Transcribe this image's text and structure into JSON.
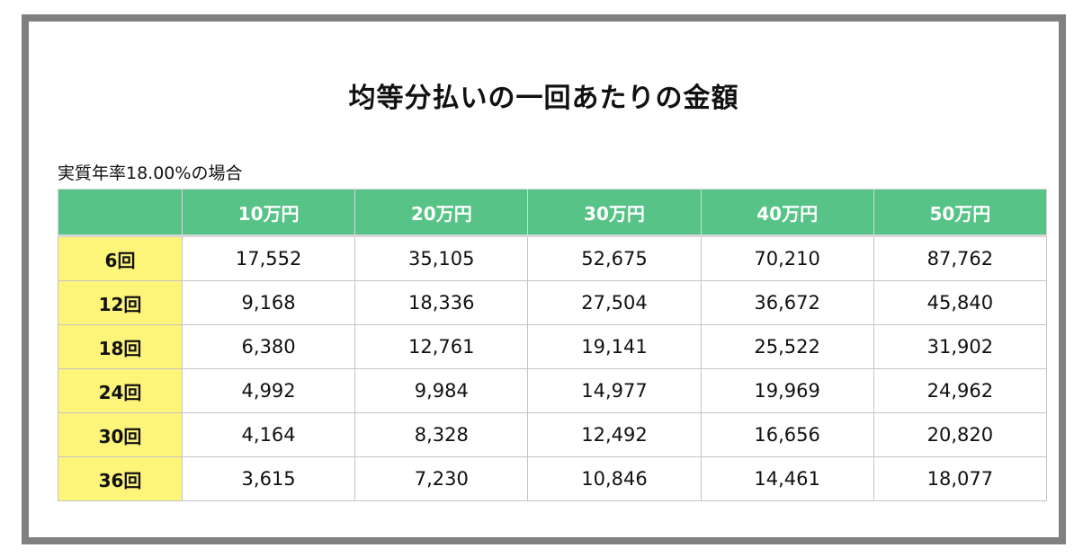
{
  "title": "均等分払いの一回あたりの金額",
  "caption": "実質年率18.00%の場合",
  "table": {
    "corner": "",
    "columns": [
      "10万円",
      "20万円",
      "30万円",
      "40万円",
      "50万円"
    ],
    "rows": [
      {
        "label": "6回",
        "values": [
          "17,552",
          "35,105",
          "52,675",
          "70,210",
          "87,762"
        ]
      },
      {
        "label": "12回",
        "values": [
          "9,168",
          "18,336",
          "27,504",
          "36,672",
          "45,840"
        ]
      },
      {
        "label": "18回",
        "values": [
          "6,380",
          "12,761",
          "19,141",
          "25,522",
          "31,902"
        ]
      },
      {
        "label": "24回",
        "values": [
          "4,992",
          "9,984",
          "14,977",
          "19,969",
          "24,962"
        ]
      },
      {
        "label": "30回",
        "values": [
          "4,164",
          "8,328",
          "12,492",
          "16,656",
          "20,820"
        ]
      },
      {
        "label": "36回",
        "values": [
          "3,615",
          "7,230",
          "10,846",
          "14,461",
          "18,077"
        ]
      }
    ]
  },
  "colors": {
    "header_bg": "#57c387",
    "row_label_bg": "#fdf47a",
    "frame_border": "#808080"
  }
}
